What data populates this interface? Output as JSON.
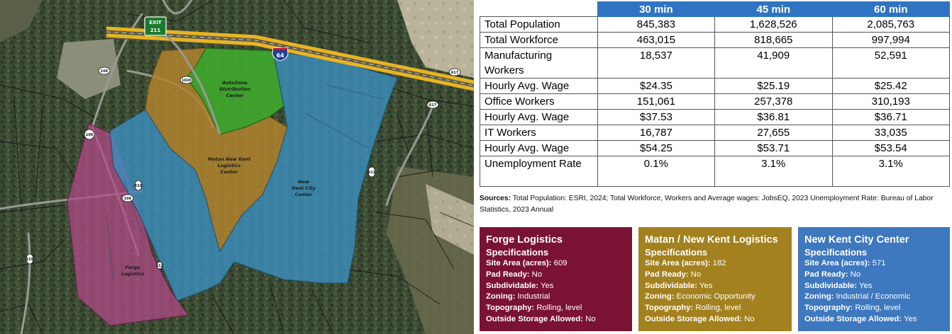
{
  "map": {
    "labels": {
      "autozone": [
        "AutoZone",
        "Distribution",
        "Center"
      ],
      "matan": [
        "Matan New Kent",
        "Logistics",
        "Center"
      ],
      "nkcc": [
        "New",
        "Kent City",
        "Center"
      ],
      "forge": [
        "Forge",
        "Logistics"
      ]
    },
    "exit_sign": [
      "EXIT",
      "211"
    ],
    "interstate": "64",
    "route_shields": [
      "106",
      "106",
      "1020",
      "617",
      "617",
      "611",
      "610",
      "106",
      "155",
      "612"
    ],
    "colors": {
      "autozone": "#3fa82c",
      "matan": "#b0832e",
      "nkcc": "#3b8fbf",
      "forge": "#b04a86",
      "highway": "#e8b422",
      "exit_sign": "#1c7a2c"
    }
  },
  "table": {
    "columns": [
      "30 min",
      "45 min",
      "60 min"
    ],
    "rows": [
      {
        "label": "Total Population",
        "values": [
          "845,383",
          "1,628,526",
          "2,085,763"
        ]
      },
      {
        "label": "Total Workforce",
        "values": [
          "463,015",
          "818,665",
          "997,994"
        ]
      },
      {
        "label": "Manufacturing Workers",
        "values": [
          "18,537",
          "41,909",
          "52,591"
        ]
      },
      {
        "label": "Hourly Avg. Wage",
        "values": [
          "$24.35",
          "$25.19",
          "$25.42"
        ]
      },
      {
        "label": "Office Workers",
        "values": [
          "151,061",
          "257,378",
          "310,193"
        ]
      },
      {
        "label": "Hourly Avg. Wage",
        "values": [
          "$37.53",
          "$36.81",
          "$36.71"
        ]
      },
      {
        "label": "IT Workers",
        "values": [
          "16,787",
          "27,655",
          "33,035"
        ]
      },
      {
        "label": "Hourly Avg. Wage",
        "values": [
          "$54.25",
          "$53.71",
          "$53.54"
        ]
      },
      {
        "label": "Unemployment Rate",
        "values": [
          "0.1%",
          "3.1%",
          "3.1%"
        ]
      }
    ],
    "header_color": "#2f74c2"
  },
  "sources": {
    "label": "Sources:",
    "text": "Total Population: ESRI, 2024; Total Workforce, Workers and Average wages: JobsEQ, 2023 Unemployment Rate: Bureau of Labor Statistics, 2023 Annual"
  },
  "cards": [
    {
      "title": "Forge Logistics",
      "subtitle": "Specifications",
      "color": "#7a1234",
      "specs": [
        {
          "key": "Site Area (acres):",
          "value": "609"
        },
        {
          "key": "Pad Ready:",
          "value": "No"
        },
        {
          "key": "Subdividable:",
          "value": "Yes"
        },
        {
          "key": "Zoning:",
          "value": "Industrial"
        },
        {
          "key": "Topography:",
          "value": "Rolling, level"
        },
        {
          "key": "Outside Storage Allowed:",
          "value": "No"
        }
      ]
    },
    {
      "title": "Matan / New Kent Logistics",
      "subtitle": "Specifications",
      "color": "#a3811f",
      "specs": [
        {
          "key": "Site Area (acres):",
          "value": "182"
        },
        {
          "key": "Pad Ready:",
          "value": "No"
        },
        {
          "key": "Subdividable:",
          "value": "Yes"
        },
        {
          "key": "Zoning:",
          "value": "Economic Opportunity"
        },
        {
          "key": "Topography:",
          "value": "Rolling, level"
        },
        {
          "key": "Outside Storage Allowed:",
          "value": "No"
        }
      ]
    },
    {
      "title": "New Kent City Center",
      "subtitle": "Specifications",
      "color": "#3e78bf",
      "specs": [
        {
          "key": "Site Area (acres):",
          "value": "571"
        },
        {
          "key": "Pad Ready:",
          "value": "No"
        },
        {
          "key": "Subdividable:",
          "value": "Yes"
        },
        {
          "key": "Zoning:",
          "value": "Industrial / Economic"
        },
        {
          "key": "Topography:",
          "value": "Rolling, level"
        },
        {
          "key": "Outside Storage Allowed:",
          "value": "Yes"
        }
      ]
    }
  ]
}
